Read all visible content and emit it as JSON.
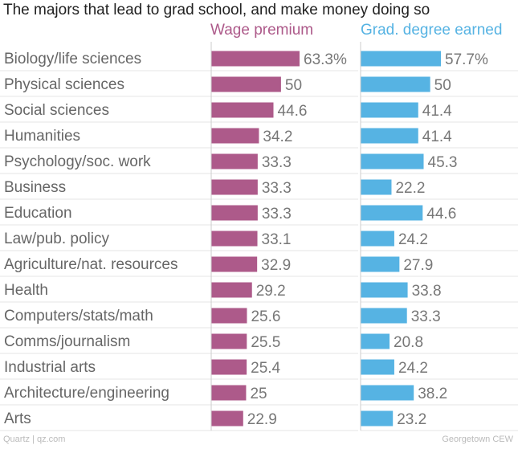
{
  "chart_data": {
    "type": "bar",
    "title": "The majors that lead to grad school, and make money doing so",
    "categories": [
      "Biology/life sciences",
      "Physical sciences",
      "Social sciences",
      "Humanities",
      "Psychology/soc. work",
      "Business",
      "Education",
      "Law/pub. policy",
      "Agriculture/nat. resources",
      "Health",
      "Computers/stats/math",
      "Comms/journalism",
      "Industrial arts",
      "Architecture/engineering",
      "Arts"
    ],
    "series": [
      {
        "name": "Wage premium",
        "color": "#ad5a8a",
        "values": [
          63.3,
          50,
          44.6,
          34.2,
          33.3,
          33.3,
          33.3,
          33.1,
          32.9,
          29.2,
          25.6,
          25.5,
          25.4,
          25,
          22.9
        ],
        "labels": [
          "63.3%",
          "50",
          "44.6",
          "34.2",
          "33.3",
          "33.3",
          "33.3",
          "33.1",
          "32.9",
          "29.2",
          "25.6",
          "25.5",
          "25.4",
          "25",
          "22.9"
        ]
      },
      {
        "name": "Grad. degree earned",
        "color": "#56b3e3",
        "values": [
          57.7,
          50,
          41.4,
          41.4,
          45.3,
          22.2,
          44.6,
          24.2,
          27.9,
          33.8,
          33.3,
          20.8,
          24.2,
          38.2,
          23.2
        ],
        "labels": [
          "57.7%",
          "50",
          "41.4",
          "41.4",
          "45.3",
          "22.2",
          "44.6",
          "24.2",
          "27.9",
          "33.8",
          "33.3",
          "20.8",
          "24.2",
          "38.2",
          "23.2"
        ]
      }
    ],
    "legend": "top"
  },
  "footer": {
    "source_left": "Quartz | qz.com",
    "source_right": "Georgetown CEW"
  }
}
